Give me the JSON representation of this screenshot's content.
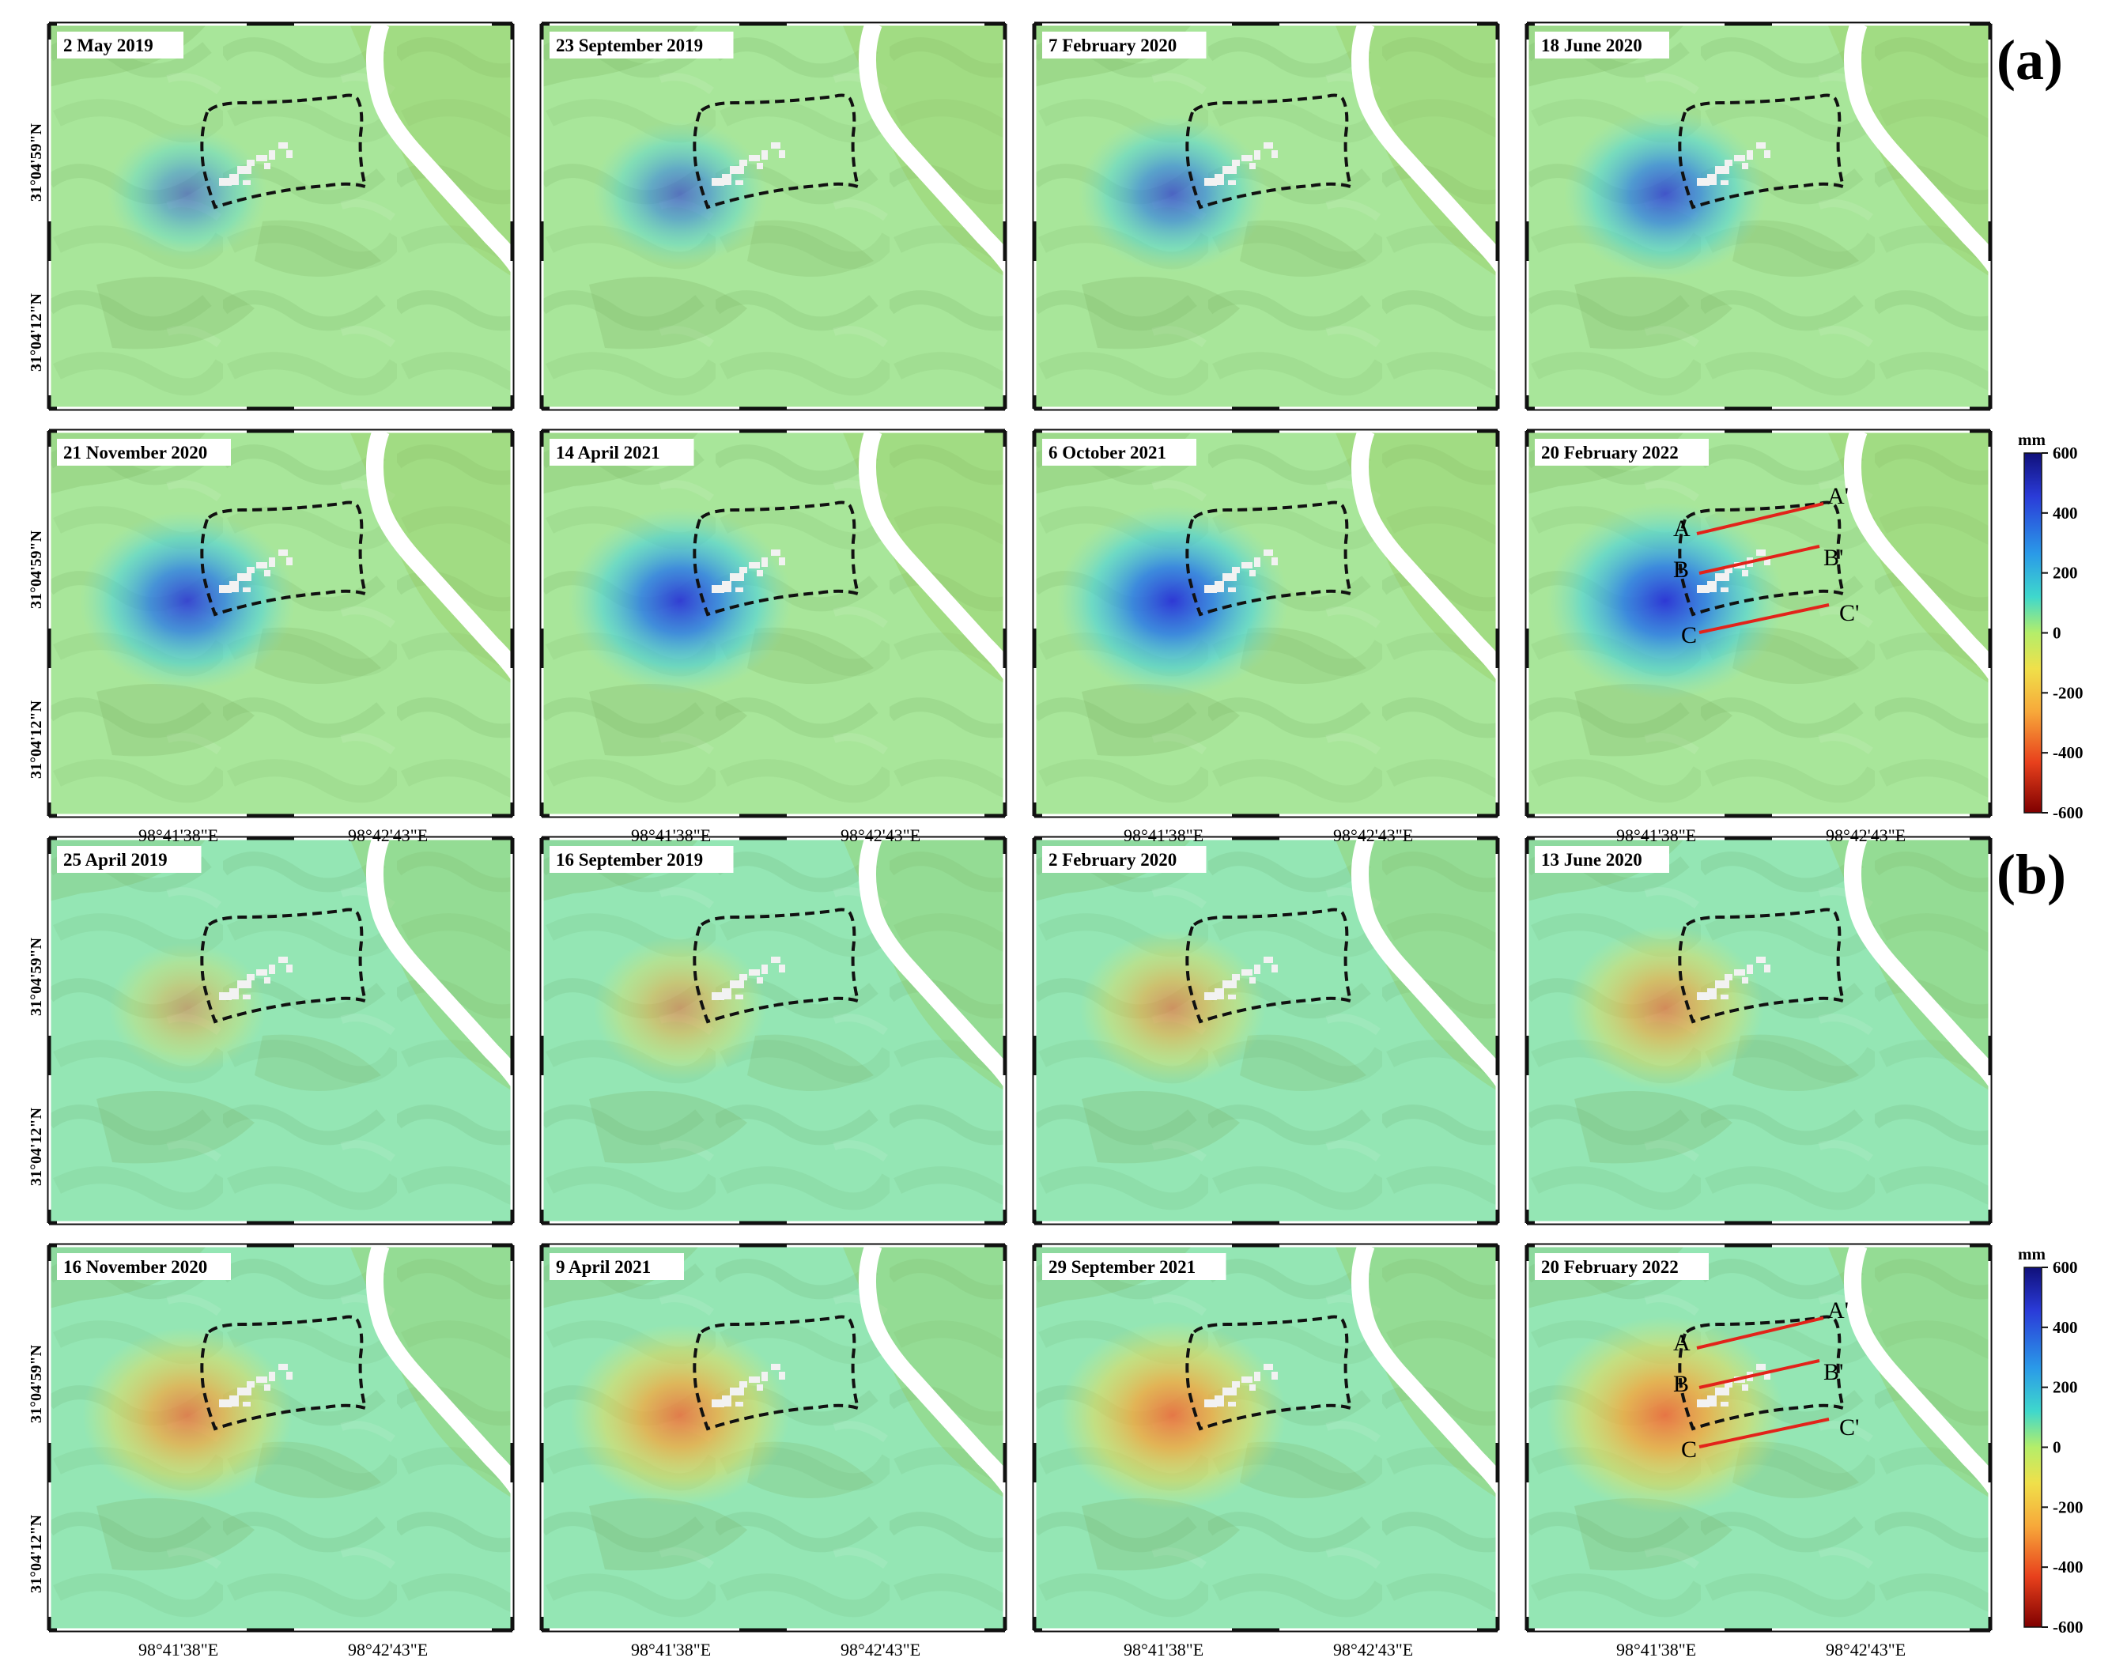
{
  "figure": {
    "groups": [
      {
        "tag": "(a)",
        "dates": [
          "2 May 2019",
          "23 September 2019",
          "7 February 2020",
          "18 June 2020",
          "21 November 2020",
          "14 April 2021",
          "6 October 2021",
          "20 February 2022"
        ],
        "deformation_sign": "positive",
        "intensity": [
          0.28,
          0.42,
          0.55,
          0.68,
          0.8,
          0.88,
          0.95,
          1.0
        ]
      },
      {
        "tag": "(b)",
        "dates": [
          "25 April 2019",
          "16 September 2019",
          "2 February 2020",
          "13 June 2020",
          "16 November 2020",
          "9 April 2021",
          "29 September 2021",
          "20 February 2022"
        ],
        "deformation_sign": "negative",
        "intensity": [
          0.25,
          0.4,
          0.52,
          0.62,
          0.75,
          0.83,
          0.9,
          1.0
        ]
      }
    ],
    "lat_ticks": [
      "31°04'59\"N",
      "31°04'12\"N"
    ],
    "lon_ticks": [
      "98°41'38\"E",
      "98°42'43\"E"
    ],
    "profiles": [
      {
        "start": "A",
        "end": "A'"
      },
      {
        "start": "B",
        "end": "B'"
      },
      {
        "start": "C",
        "end": "C'"
      }
    ],
    "colorbar": {
      "unit": "mm",
      "ticks": [
        "600",
        "400",
        "200",
        "0",
        "-200",
        "-400",
        "-600"
      ],
      "range": [
        -600,
        600
      ],
      "colors": [
        "#7f0000",
        "#e8401c",
        "#f7a83a",
        "#f0e04a",
        "#b4ee6a",
        "#3fd8cc",
        "#2a9ae8",
        "#2a3bd8",
        "#10107a"
      ]
    }
  }
}
